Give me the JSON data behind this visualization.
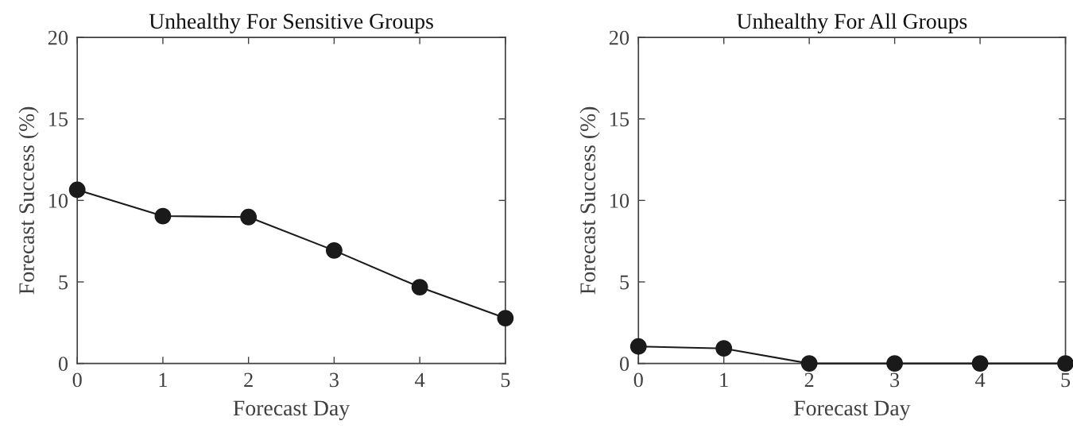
{
  "chart_data": [
    {
      "type": "line",
      "title": "Unhealthy For Sensitive Groups",
      "xlabel": "Forecast Day",
      "ylabel": "Forecast Success (%)",
      "x": [
        0,
        1,
        2,
        3,
        4,
        5
      ],
      "series": [
        {
          "color": "#1a1a1a",
          "values": [
            10.65,
            9.04,
            8.98,
            6.93,
            4.68,
            2.78
          ]
        }
      ],
      "xlim": [
        0,
        5
      ],
      "ylim": [
        0,
        20
      ],
      "xticks": [
        0,
        1,
        2,
        3,
        4,
        5
      ],
      "yticks": [
        0,
        5,
        10,
        15,
        20
      ],
      "marker": "circle",
      "line_style": "solid"
    },
    {
      "type": "line",
      "title": "Unhealthy For All Groups",
      "xlabel": "Forecast Day",
      "ylabel": "Forecast Success (%)",
      "x": [
        0,
        1,
        2,
        3,
        4,
        5
      ],
      "series": [
        {
          "color": "#1a1a1a",
          "values": [
            1.04,
            0.92,
            0,
            0,
            0,
            0
          ]
        }
      ],
      "xlim": [
        0,
        5
      ],
      "ylim": [
        0,
        20
      ],
      "xticks": [
        0,
        1,
        2,
        3,
        4,
        5
      ],
      "yticks": [
        0,
        5,
        10,
        15,
        20
      ],
      "marker": "circle",
      "line_style": "solid"
    }
  ]
}
